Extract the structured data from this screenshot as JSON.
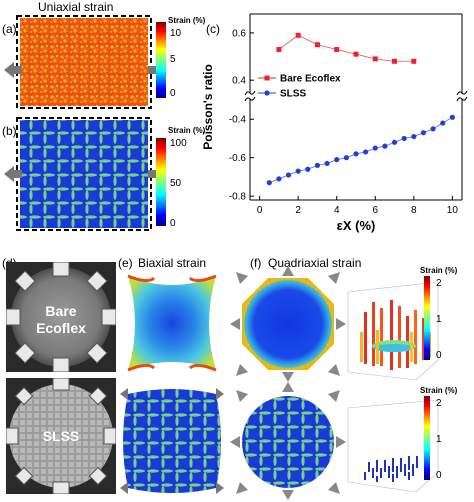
{
  "panel_a": {
    "label": "(a)",
    "title": "Uniaxial strain",
    "colorbar": {
      "title": "Strain (%)",
      "ticks": [
        "10",
        "5",
        "0"
      ]
    }
  },
  "panel_b": {
    "label": "(b)",
    "colorbar": {
      "title": "Strain (%)",
      "ticks": [
        "100",
        "50",
        "0"
      ]
    }
  },
  "panel_c": {
    "label": "(c)"
  },
  "panel_d": {
    "label": "(d)",
    "top_caption_line1": "Bare",
    "top_caption_line2": "Ecoflex",
    "bottom_caption": "SLSS"
  },
  "panel_e": {
    "label": "(e)",
    "title": "Biaxial strain"
  },
  "panel_f": {
    "label": "(f)",
    "title": "Quadriaxial strain",
    "colorbar_top": {
      "title": "Strain (%)",
      "ticks": [
        "2",
        "1",
        "0"
      ]
    },
    "colorbar_bottom": {
      "title": "Strain (%)",
      "ticks": [
        "2",
        "1",
        "0"
      ]
    }
  },
  "colors": {
    "bare": "#e8242f",
    "slss": "#2040d8"
  },
  "chart_data": {
    "type": "line",
    "xlabel": "εX (%)",
    "ylabel": "Poisson's ratio",
    "xlim": [
      -0.5,
      10.5
    ],
    "x_ticks": [
      "0",
      "2",
      "4",
      "6",
      "8",
      "10"
    ],
    "y_ticks_upper": [
      "0.6",
      "0.4"
    ],
    "y_ticks_lower": [
      "-0.4",
      "-0.6",
      "-0.8"
    ],
    "legend_position": "middle-left",
    "series": [
      {
        "name": "Bare Ecoflex",
        "marker": "square",
        "color": "#e8242f",
        "x": [
          1,
          2,
          3,
          4,
          5,
          6,
          7,
          8
        ],
        "values": [
          0.53,
          0.59,
          0.55,
          0.53,
          0.51,
          0.49,
          0.48,
          0.48
        ]
      },
      {
        "name": "SLSS",
        "marker": "circle",
        "color": "#2040d8",
        "x": [
          0.5,
          1,
          1.5,
          2,
          2.5,
          3,
          3.5,
          4,
          4.5,
          5,
          5.5,
          6,
          6.5,
          7,
          7.5,
          8,
          8.5,
          9,
          9.5,
          10
        ],
        "values": [
          -0.73,
          -0.71,
          -0.69,
          -0.67,
          -0.66,
          -0.64,
          -0.63,
          -0.61,
          -0.6,
          -0.58,
          -0.57,
          -0.55,
          -0.54,
          -0.52,
          -0.5,
          -0.49,
          -0.47,
          -0.45,
          -0.42,
          -0.39
        ]
      }
    ]
  }
}
